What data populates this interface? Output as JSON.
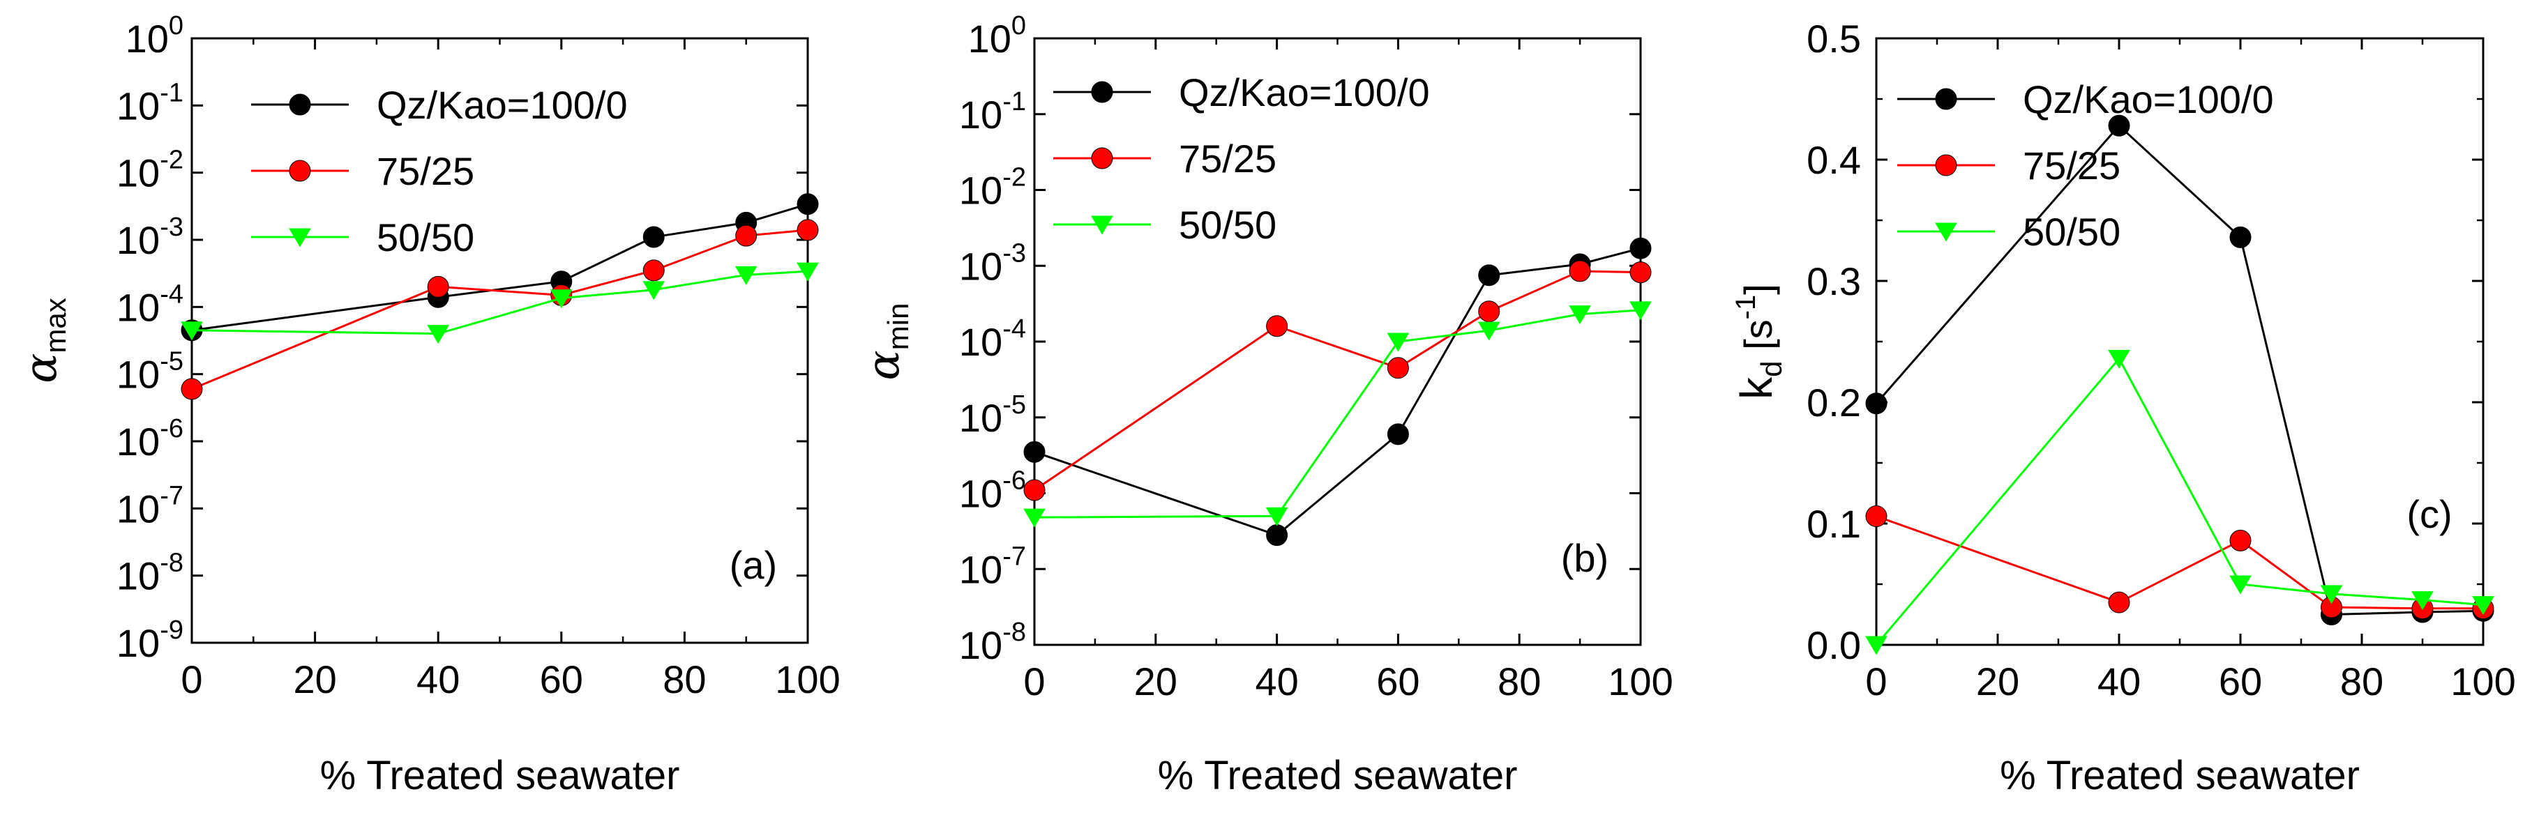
{
  "chart_data": [
    {
      "type": "line",
      "panel_label": "(a)",
      "xlabel": "% Treated seawater",
      "ylabel": {
        "symbol": "α",
        "subscript": "max"
      },
      "yscale": "log",
      "xlim": [
        0,
        100
      ],
      "ylim": [
        1e-09,
        1
      ],
      "x_ticks": [
        "0",
        "20",
        "40",
        "60",
        "80",
        "100"
      ],
      "y_tick_exponents": [
        "0",
        "-1",
        "-2",
        "-3",
        "-4",
        "-5",
        "-6",
        "-7",
        "-8",
        "-9"
      ],
      "series": [
        {
          "name": "Qz/Kao=100/0",
          "color": "#000000",
          "marker": "circle",
          "x": [
            0,
            40,
            60,
            75,
            90,
            100
          ],
          "y": [
            4.5e-05,
            0.00014,
            0.00024,
            0.0011,
            0.0018,
            0.0034
          ]
        },
        {
          "name": "75/25",
          "color": "#ff0000",
          "marker": "circle",
          "x": [
            0,
            40,
            60,
            75,
            90,
            100
          ],
          "y": [
            6e-06,
            0.0002,
            0.00015,
            0.00035,
            0.00115,
            0.0014
          ]
        },
        {
          "name": "50/50",
          "color": "#00ff00",
          "marker": "triangle-down",
          "x": [
            0,
            40,
            60,
            75,
            90,
            100
          ],
          "y": [
            4.5e-05,
            4e-05,
            0.000135,
            0.00018,
            0.0003,
            0.00034
          ]
        }
      ]
    },
    {
      "type": "line",
      "panel_label": "(b)",
      "xlabel": "% Treated seawater",
      "ylabel": {
        "symbol": "α",
        "subscript": "min"
      },
      "yscale": "log",
      "xlim": [
        0,
        100
      ],
      "ylim": [
        1e-08,
        1
      ],
      "x_ticks": [
        "0",
        "20",
        "40",
        "60",
        "80",
        "100"
      ],
      "y_tick_exponents": [
        "0",
        "-1",
        "-2",
        "-3",
        "-4",
        "-5",
        "-6",
        "-7",
        "-8"
      ],
      "series": [
        {
          "name": "Qz/Kao=100/0",
          "color": "#000000",
          "marker": "circle",
          "x": [
            0,
            40,
            60,
            75,
            90,
            100
          ],
          "y": [
            3.5e-06,
            2.8e-07,
            6e-06,
            0.00075,
            0.00105,
            0.0017
          ]
        },
        {
          "name": "75/25",
          "color": "#ff0000",
          "marker": "circle",
          "x": [
            0,
            40,
            60,
            75,
            90,
            100
          ],
          "y": [
            1.1e-06,
            0.00016,
            4.5e-05,
            0.00025,
            0.00085,
            0.00082
          ]
        },
        {
          "name": "50/50",
          "color": "#00ff00",
          "marker": "triangle-down",
          "x": [
            0,
            40,
            60,
            75,
            90,
            100
          ],
          "y": [
            4.8e-07,
            5e-07,
            0.0001,
            0.00014,
            0.00023,
            0.00026
          ]
        }
      ]
    },
    {
      "type": "line",
      "panel_label": "(c)",
      "xlabel": "% Treated seawater",
      "ylabel": {
        "symbol": "k",
        "subscript": "d",
        "unit": "[s",
        "unit_exp": "-1",
        "unit_close": "]"
      },
      "yscale": "linear",
      "xlim": [
        0,
        100
      ],
      "ylim": [
        0,
        0.5
      ],
      "x_ticks": [
        "0",
        "20",
        "40",
        "60",
        "80",
        "100"
      ],
      "y_ticks": [
        "0.0",
        "0.1",
        "0.2",
        "0.3",
        "0.4",
        "0.5"
      ],
      "series": [
        {
          "name": "Qz/Kao=100/0",
          "color": "#000000",
          "marker": "circle",
          "x": [
            0,
            40,
            60,
            75,
            90,
            100
          ],
          "y": [
            0.199,
            0.428,
            0.336,
            0.025,
            0.027,
            0.028
          ]
        },
        {
          "name": "75/25",
          "color": "#ff0000",
          "marker": "circle",
          "x": [
            0,
            40,
            60,
            75,
            90,
            100
          ],
          "y": [
            0.106,
            0.035,
            0.086,
            0.031,
            0.03,
            0.03
          ]
        },
        {
          "name": "50/50",
          "color": "#00ff00",
          "marker": "triangle-down",
          "x": [
            0,
            40,
            60,
            75,
            90,
            100
          ],
          "y": [
            0.0,
            0.236,
            0.05,
            0.042,
            0.037,
            0.033
          ]
        }
      ]
    }
  ]
}
